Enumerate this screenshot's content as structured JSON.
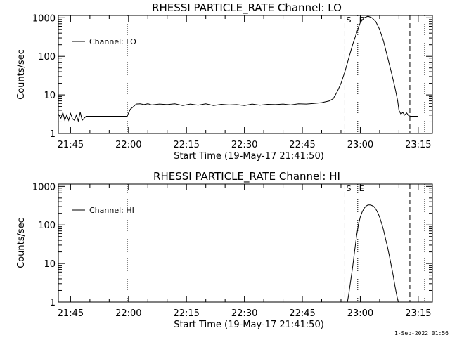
{
  "chart_data": [
    {
      "type": "line",
      "title": "RHESSI PARTICLE_RATE Channel: LO",
      "xlabel": "Start Time (19-May-17 21:41:50)",
      "ylabel": "Counts/sec",
      "y_scale": "log",
      "ylim": [
        1,
        1000
      ],
      "x_tick_labels": [
        "21:45",
        "22:00",
        "22:15",
        "22:30",
        "22:45",
        "23:00",
        "23:15"
      ],
      "y_tick_labels": [
        "1",
        "10",
        "100",
        "1000"
      ],
      "legend": {
        "entries": [
          "Channel: LO"
        ],
        "placement": "top-left"
      },
      "dotted_lines": [
        "21:59:40",
        "22:59:20",
        "23:16:40"
      ],
      "dashed_lines": [
        "22:56:00",
        "23:12:50"
      ],
      "markers": [
        {
          "label": "S",
          "time": "22:56:00"
        },
        {
          "label": "E",
          "time": "22:59:20"
        }
      ],
      "series": [
        {
          "name": "Channel: LO",
          "x": [
            "21:41:50",
            "21:42:30",
            "21:43:00",
            "21:43:30",
            "21:44:00",
            "21:44:30",
            "21:45:00",
            "21:45:30",
            "21:46:00",
            "21:46:30",
            "21:47:00",
            "21:47:30",
            "21:48:00",
            "21:49:00",
            "21:52:00",
            "21:55:00",
            "21:58:00",
            "21:59:40",
            "22:00:00",
            "22:00:30",
            "22:01:00",
            "22:02:00",
            "22:03:00",
            "22:04:00",
            "22:05:00",
            "22:06:00",
            "22:08:00",
            "22:10:00",
            "22:12:00",
            "22:14:00",
            "22:16:00",
            "22:18:00",
            "22:20:00",
            "22:22:00",
            "22:24:00",
            "22:26:00",
            "22:28:00",
            "22:30:00",
            "22:32:00",
            "22:34:00",
            "22:36:00",
            "22:38:00",
            "22:40:00",
            "22:42:00",
            "22:44:00",
            "22:46:00",
            "22:48:00",
            "22:50:00",
            "22:52:00",
            "22:53:00",
            "22:54:00",
            "22:55:00",
            "22:56:00",
            "22:57:00",
            "22:58:00",
            "22:59:00",
            "23:00:00",
            "23:01:00",
            "23:02:00",
            "23:03:00",
            "23:04:00",
            "23:05:00",
            "23:06:00",
            "23:07:00",
            "23:08:00",
            "23:09:00",
            "23:09:40",
            "23:10:00",
            "23:10:30",
            "23:11:00",
            "23:11:30",
            "23:12:00",
            "23:12:30",
            "23:13:00",
            "23:14:00",
            "23:15:00"
          ],
          "y": [
            3.2,
            2.5,
            3.5,
            2.2,
            3.0,
            2.2,
            3.3,
            2.4,
            2.2,
            3.0,
            2.1,
            3.6,
            2.2,
            2.8,
            2.8,
            2.8,
            2.8,
            2.8,
            3.4,
            4.3,
            4.7,
            5.8,
            5.9,
            5.6,
            5.9,
            5.5,
            5.8,
            5.6,
            5.9,
            5.3,
            5.8,
            5.4,
            5.9,
            5.3,
            5.7,
            5.5,
            5.6,
            5.3,
            5.8,
            5.4,
            5.7,
            5.6,
            5.8,
            5.5,
            5.9,
            5.8,
            6.0,
            6.3,
            7.0,
            8.0,
            12,
            20,
            40,
            90,
            200,
            400,
            750,
            1000,
            1100,
            1000,
            800,
            500,
            250,
            100,
            40,
            15,
            7,
            4,
            3.2,
            3.5,
            3.0,
            3.4,
            2.9,
            2.8,
            2.8,
            2.8
          ]
        }
      ]
    },
    {
      "type": "line",
      "title": "RHESSI PARTICLE_RATE Channel: HI",
      "xlabel": "Start Time (19-May-17 21:41:50)",
      "ylabel": "Counts/sec",
      "y_scale": "log",
      "ylim": [
        1,
        1000
      ],
      "x_tick_labels": [
        "21:45",
        "22:00",
        "22:15",
        "22:30",
        "22:45",
        "23:00",
        "23:15"
      ],
      "y_tick_labels": [
        "1",
        "10",
        "100",
        "1000"
      ],
      "legend": {
        "entries": [
          "Channel: HI"
        ],
        "placement": "top-left"
      },
      "dotted_lines": [
        "21:59:40",
        "22:59:20",
        "23:16:40"
      ],
      "dashed_lines": [
        "22:56:00",
        "23:12:50"
      ],
      "markers": [
        {
          "label": "S",
          "time": "22:56:00"
        },
        {
          "label": "E",
          "time": "22:59:20"
        }
      ],
      "series": [
        {
          "name": "Channel: HI",
          "x": [
            "22:56:40",
            "22:57:00",
            "22:57:30",
            "22:58:00",
            "22:58:30",
            "22:59:00",
            "22:59:30",
            "23:00:00",
            "23:00:30",
            "23:01:00",
            "23:01:30",
            "23:02:00",
            "23:02:30",
            "23:03:00",
            "23:03:30",
            "23:04:00",
            "23:04:30",
            "23:05:00",
            "23:05:30",
            "23:06:00",
            "23:06:30",
            "23:07:00",
            "23:07:30",
            "23:08:00",
            "23:08:30",
            "23:09:00",
            "23:09:30",
            "23:09:50"
          ],
          "y": [
            1.0,
            1.6,
            3.5,
            8,
            20,
            50,
            100,
            160,
            220,
            270,
            310,
            330,
            330,
            320,
            300,
            260,
            210,
            160,
            110,
            75,
            45,
            28,
            16,
            9,
            5,
            2.5,
            1.4,
            1.0
          ]
        }
      ]
    }
  ],
  "footer": {
    "timestamp": "1-Sep-2022 01:56"
  }
}
